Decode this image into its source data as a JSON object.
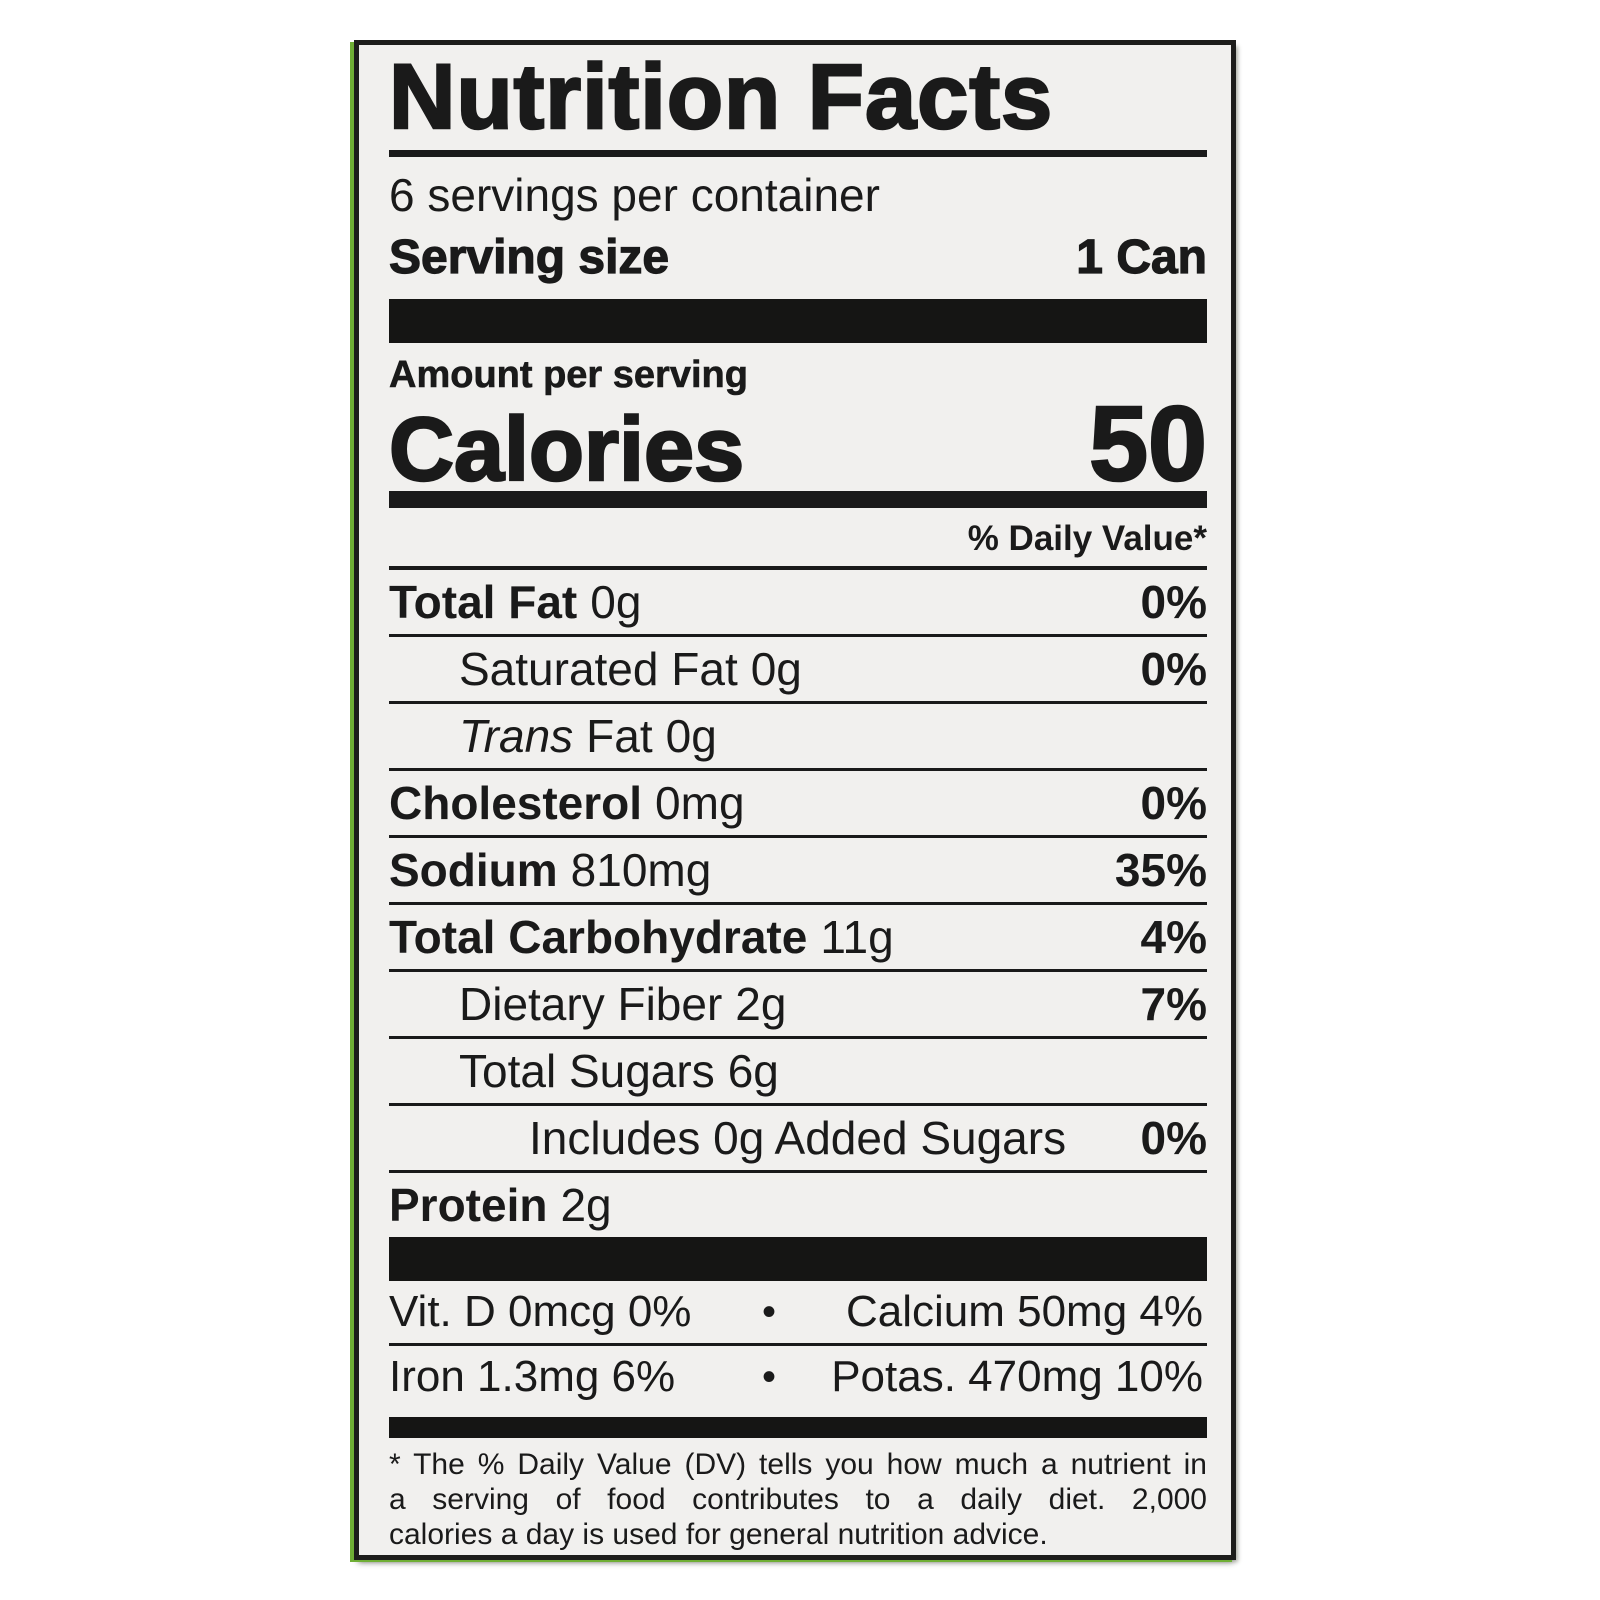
{
  "colors": {
    "label_background": "#f1f0ee",
    "ink": "#1a1a1a",
    "package_edge_green": "#6fae35",
    "page_background": "#ffffff"
  },
  "header": {
    "title": "Nutrition Facts",
    "servings_per_container": "6 servings per container",
    "serving_size_label": "Serving size",
    "serving_size_value": "1 Can"
  },
  "calories": {
    "amount_per_serving_label": "Amount per serving",
    "label": "Calories",
    "value": "50"
  },
  "daily_value_header": "% Daily Value*",
  "nutrient_rows": [
    {
      "name": "Total Fat",
      "value": "0g",
      "pct": "0%"
    },
    {
      "name": "Saturated Fat",
      "value": "0g",
      "pct": "0%"
    },
    {
      "name_italic": "Trans",
      "name": "Fat",
      "value": "0g",
      "pct": ""
    },
    {
      "name": "Cholesterol",
      "value": "0mg",
      "pct": "0%"
    },
    {
      "name": "Sodium",
      "value": "810mg",
      "pct": "35%"
    },
    {
      "name": "Total Carbohydrate",
      "value": "11g",
      "pct": "4%"
    },
    {
      "name": "Dietary Fiber",
      "value": "2g",
      "pct": "7%"
    },
    {
      "name": "Total Sugars",
      "value": "6g",
      "pct": ""
    },
    {
      "name": "Includes 0g Added Sugars",
      "value": "",
      "pct": "0%"
    },
    {
      "name": "Protein",
      "value": "2g",
      "pct": ""
    }
  ],
  "micronutrients": {
    "bullet": "•",
    "rows": [
      {
        "left": "Vit. D 0mcg 0%",
        "right": "Calcium 50mg 4%"
      },
      {
        "left": "Iron 1.3mg 6%",
        "right": "Potas. 470mg 10%"
      }
    ]
  },
  "footnote_lines": [
    "* The % Daily Value (DV) tells you how much a nutrient in",
    "a serving of food contributes to a daily diet. 2,000",
    "calories a day is used for general nutrition advice."
  ]
}
